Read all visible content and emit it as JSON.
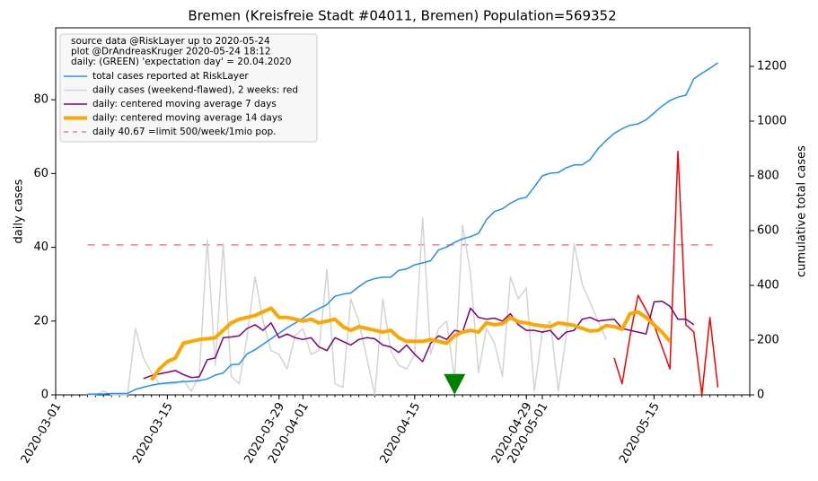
{
  "chart_data": {
    "type": "line",
    "title": "Bremen (Kreisfreie Stadt #04011, Bremen) Population=569352",
    "ylabel": "daily cases",
    "ylabel_color": "purple",
    "y2label": "cumulative total cases",
    "y2label_color": "#1e90ff",
    "notes": [
      "source data @RiskLayer up to 2020-05-24",
      "plot @DrAndreasKruger 2020-05-24 18:12",
      "daily: (GREEN) 'expectation day' = 20.04.2020"
    ],
    "x": [
      "2020-03-05",
      "2020-03-06",
      "2020-03-07",
      "2020-03-08",
      "2020-03-09",
      "2020-03-10",
      "2020-03-11",
      "2020-03-12",
      "2020-03-13",
      "2020-03-14",
      "2020-03-15",
      "2020-03-16",
      "2020-03-17",
      "2020-03-18",
      "2020-03-19",
      "2020-03-20",
      "2020-03-21",
      "2020-03-22",
      "2020-03-23",
      "2020-03-24",
      "2020-03-25",
      "2020-03-26",
      "2020-03-27",
      "2020-03-28",
      "2020-03-29",
      "2020-03-30",
      "2020-03-31",
      "2020-04-01",
      "2020-04-02",
      "2020-04-03",
      "2020-04-04",
      "2020-04-05",
      "2020-04-06",
      "2020-04-07",
      "2020-04-08",
      "2020-04-09",
      "2020-04-10",
      "2020-04-11",
      "2020-04-12",
      "2020-04-13",
      "2020-04-14",
      "2020-04-15",
      "2020-04-16",
      "2020-04-17",
      "2020-04-18",
      "2020-04-19",
      "2020-04-20",
      "2020-04-21",
      "2020-04-22",
      "2020-04-23",
      "2020-04-24",
      "2020-04-25",
      "2020-04-26",
      "2020-04-27",
      "2020-04-28",
      "2020-04-29",
      "2020-04-30",
      "2020-05-01",
      "2020-05-02",
      "2020-05-03",
      "2020-05-04",
      "2020-05-05",
      "2020-05-06",
      "2020-05-07",
      "2020-05-08",
      "2020-05-09",
      "2020-05-10",
      "2020-05-11",
      "2020-05-12",
      "2020-05-13",
      "2020-05-14",
      "2020-05-15",
      "2020-05-16",
      "2020-05-17",
      "2020-05-18",
      "2020-05-19",
      "2020-05-20",
      "2020-05-21",
      "2020-05-22",
      "2020-05-23"
    ],
    "series": [
      {
        "name": "total cases reported at RiskLayer",
        "color": "#1e90ff",
        "axis": "y2",
        "width": 1.5,
        "values": [
          3,
          3,
          3,
          5,
          5,
          5,
          20,
          28,
          35,
          40,
          44,
          46,
          48,
          50,
          52,
          58,
          72,
          80,
          110,
          112,
          150,
          165,
          185,
          205,
          225,
          245,
          262,
          280,
          300,
          315,
          330,
          360,
          368,
          372,
          395,
          415,
          425,
          430,
          430,
          455,
          460,
          475,
          482,
          490,
          530,
          540,
          557,
          570,
          578,
          590,
          640,
          670,
          680,
          700,
          715,
          722,
          760,
          800,
          810,
          812,
          830,
          840,
          840,
          860,
          900,
          930,
          955,
          972,
          985,
          990,
          1005,
          1030,
          1055,
          1075,
          1088,
          1095,
          1155,
          1175,
          1193,
          1213
        ]
      },
      {
        "name": "daily cases (weekend-flawed), 2 weeks: red",
        "color": "#d3d3d3",
        "recent_color": "red",
        "recent_from": "2020-05-10",
        "width": 1.5,
        "values": [
          0,
          0,
          1,
          0,
          0,
          0,
          18,
          10,
          6,
          3,
          3,
          3,
          4,
          1,
          5,
          42,
          8,
          41,
          5,
          3,
          16,
          32,
          20,
          12,
          11,
          7,
          16,
          18,
          11,
          12,
          34,
          3,
          2,
          26,
          20,
          10,
          0,
          26,
          12,
          8,
          7,
          11,
          48,
          11,
          18,
          20,
          4,
          46,
          33,
          6,
          18,
          14,
          5,
          32,
          26,
          29,
          1,
          17,
          20,
          1,
          16,
          41,
          30,
          25,
          20,
          15,
          10,
          3,
          16,
          27,
          23,
          19,
          13,
          7,
          66,
          19,
          17,
          0,
          21,
          2
        ]
      },
      {
        "name": "daily: centered moving average 7 days",
        "color": "purple",
        "width": 1.5,
        "values": [
          null,
          null,
          null,
          null,
          null,
          null,
          null,
          4.4,
          5.2,
          5.7,
          6.1,
          6.6,
          5.5,
          4.7,
          4.9,
          9.5,
          10,
          15.5,
          15.7,
          16,
          18,
          19,
          17.5,
          19.5,
          15.5,
          16.5,
          15.5,
          15,
          15.5,
          13,
          12,
          15.5,
          14.5,
          13.5,
          15,
          15.5,
          15.2,
          13.5,
          13,
          11.5,
          13.5,
          11,
          9,
          14,
          16,
          15,
          17.5,
          17,
          23.5,
          21,
          20.5,
          20.8,
          20,
          22,
          19,
          17.5,
          17.5,
          17,
          17.5,
          15,
          17,
          17.5,
          20.5,
          21,
          20,
          20.3,
          20.5,
          18,
          17.5,
          17,
          16.5,
          25.2,
          25.4,
          24,
          20.5,
          20.5,
          19,
          null,
          null,
          null
        ]
      },
      {
        "name": "daily: centered moving average 14 days",
        "color": "orange",
        "width": 4,
        "values": [
          null,
          null,
          null,
          null,
          null,
          null,
          null,
          null,
          4,
          7,
          9,
          10,
          14,
          14.5,
          15,
          15.2,
          15.5,
          17.5,
          19.5,
          20.5,
          21,
          21.5,
          22.5,
          23.5,
          21,
          21,
          20.5,
          20,
          20.5,
          19.5,
          20,
          20.5,
          18.5,
          17.5,
          18.5,
          18,
          17.5,
          17,
          17.5,
          15.5,
          14.5,
          14.5,
          14.5,
          15,
          14.5,
          14,
          16,
          17,
          17.5,
          17,
          19.5,
          19,
          19.3,
          21,
          19.8,
          19.5,
          19,
          18.7,
          18.5,
          19.5,
          19.2,
          18.8,
          18,
          17.3,
          17.5,
          18.8,
          18.5,
          17.8,
          22,
          22.5,
          21,
          19,
          17,
          14.5,
          null,
          null,
          null,
          null,
          null,
          null
        ]
      }
    ],
    "limit": {
      "name": "daily 40.67 =limit 500/week/1mio pop.",
      "value": 40.67,
      "color": "#f08080"
    },
    "expectation_day": {
      "x": "2020-04-20",
      "y": 2.5,
      "color": "green"
    },
    "xlim": [
      "2020-03-01",
      "2020-05-27"
    ],
    "xticks": [
      "2020-03-01",
      "2020-03-15",
      "2020-03-29",
      "2020-04-01",
      "2020-04-15",
      "2020-04-29",
      "2020-05-01",
      "2020-05-15"
    ],
    "ylim": [
      0,
      99.5
    ],
    "yticks": [
      0,
      20,
      40,
      60,
      80
    ],
    "y2lim": [
      0,
      1341
    ],
    "y2ticks": [
      0,
      200,
      400,
      600,
      800,
      1000,
      1200
    ]
  }
}
